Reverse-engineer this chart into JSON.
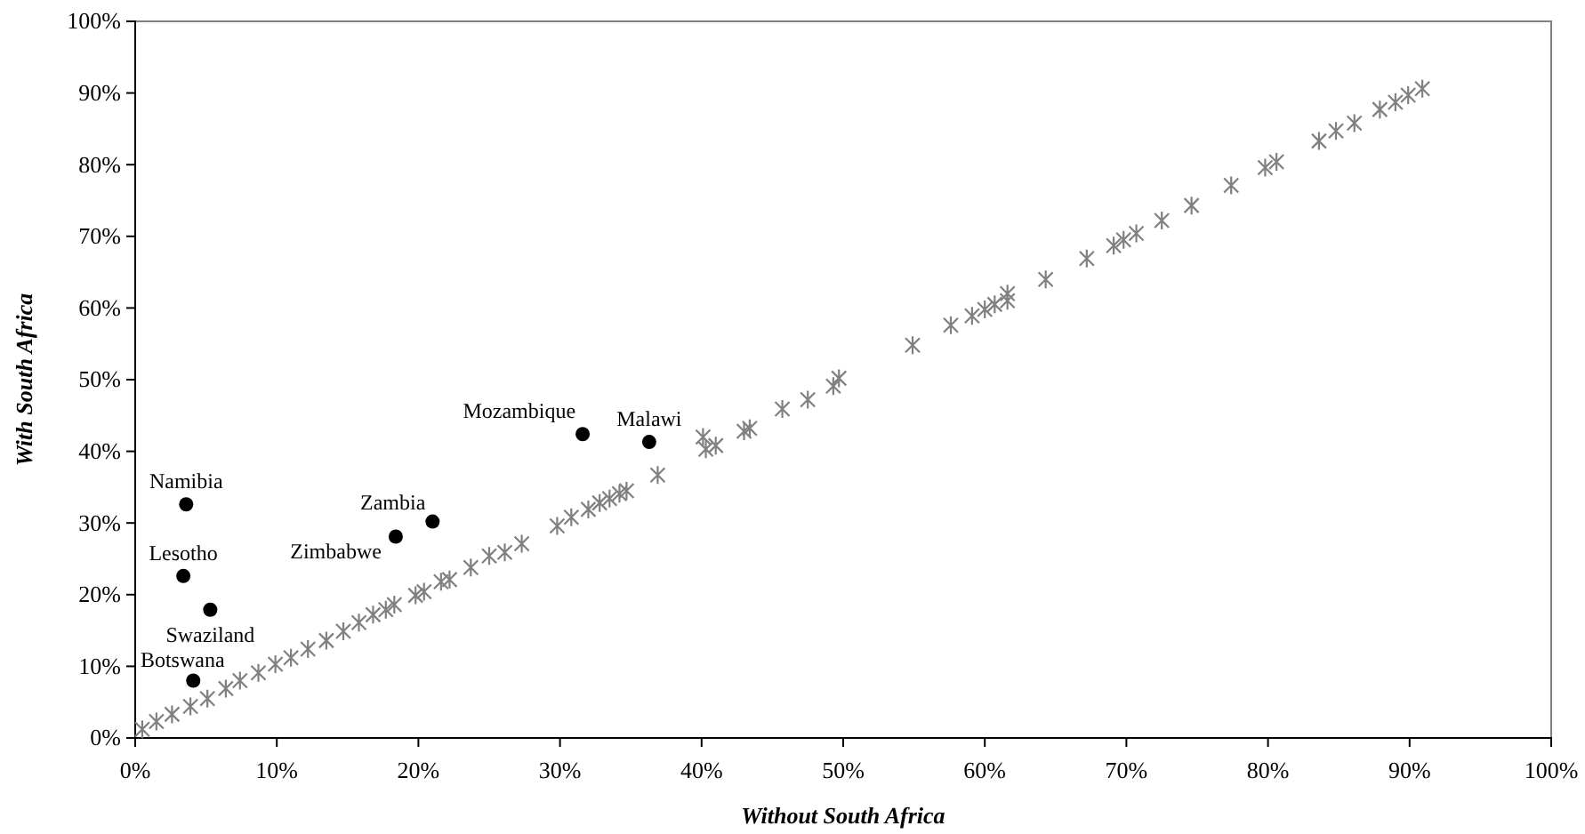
{
  "chart_data": {
    "type": "scatter",
    "xlabel": "Without South Africa",
    "ylabel": "With South Africa",
    "xlim": [
      0,
      100
    ],
    "ylim": [
      0,
      100
    ],
    "xticks": [
      {
        "value": 0,
        "label": "0%"
      },
      {
        "value": 10,
        "label": "10%"
      },
      {
        "value": 20,
        "label": "20%"
      },
      {
        "value": 30,
        "label": "30%"
      },
      {
        "value": 40,
        "label": "40%"
      },
      {
        "value": 50,
        "label": "50%"
      },
      {
        "value": 60,
        "label": "60%"
      },
      {
        "value": 70,
        "label": "70%"
      },
      {
        "value": 80,
        "label": "80%"
      },
      {
        "value": 90,
        "label": "90%"
      },
      {
        "value": 100,
        "label": "100%"
      }
    ],
    "yticks": [
      {
        "value": 0,
        "label": "0%"
      },
      {
        "value": 10,
        "label": "10%"
      },
      {
        "value": 20,
        "label": "20%"
      },
      {
        "value": 30,
        "label": "30%"
      },
      {
        "value": 40,
        "label": "40%"
      },
      {
        "value": 50,
        "label": "50%"
      },
      {
        "value": 60,
        "label": "60%"
      },
      {
        "value": 70,
        "label": "70%"
      },
      {
        "value": 80,
        "label": "80%"
      },
      {
        "value": 90,
        "label": "90%"
      },
      {
        "value": 100,
        "label": "100%"
      }
    ],
    "grid": false,
    "series": [
      {
        "color": "#808080",
        "marker": "cross",
        "x": [
          0.5,
          1.5,
          2.6,
          3.9,
          5.1,
          6.4,
          7.4,
          8.7,
          9.9,
          11.0,
          12.2,
          13.5,
          14.7,
          15.8,
          16.8,
          17.7,
          18.3,
          19.8,
          20.4,
          21.6,
          22.2,
          23.7,
          25.0,
          26.1,
          27.3,
          29.8,
          30.8,
          32.0,
          32.8,
          33.5,
          34.2,
          34.7,
          36.9,
          40.1,
          40.3,
          41.0,
          43.0,
          43.4,
          45.7,
          47.5,
          49.3,
          49.7,
          54.9,
          57.6,
          59.1,
          60.0,
          60.7,
          61.6,
          61.6,
          64.3,
          67.2,
          69.1,
          69.8,
          70.7,
          72.5,
          74.6,
          77.4,
          79.8,
          80.6,
          83.6,
          84.8,
          86.1,
          87.9,
          89.0,
          89.9,
          90.9
        ],
        "values": [
          1.2,
          2.3,
          3.3,
          4.4,
          5.5,
          6.9,
          8.0,
          9.1,
          10.3,
          11.2,
          12.4,
          13.6,
          14.9,
          16.1,
          17.2,
          17.9,
          18.6,
          19.9,
          20.4,
          21.8,
          22.1,
          23.8,
          25.4,
          25.9,
          27.1,
          29.6,
          30.8,
          31.9,
          32.8,
          33.4,
          34.1,
          34.5,
          36.7,
          42.0,
          40.3,
          40.8,
          42.8,
          43.2,
          45.9,
          47.2,
          49.1,
          50.2,
          54.8,
          57.6,
          58.9,
          59.8,
          60.5,
          61.0,
          62.0,
          64.0,
          66.9,
          68.7,
          69.5,
          70.4,
          72.2,
          74.3,
          77.1,
          79.6,
          80.4,
          83.3,
          84.7,
          85.8,
          87.7,
          88.7,
          89.7,
          90.6
        ]
      },
      {
        "color": "#000000",
        "marker": "circle",
        "x": [
          3.6,
          3.4,
          5.3,
          4.1,
          18.4,
          21.0,
          31.6,
          36.3
        ],
        "values": [
          32.6,
          22.6,
          17.9,
          8.0,
          28.1,
          30.2,
          42.4,
          41.3
        ]
      }
    ],
    "annotations": [
      {
        "text": "Namibia",
        "x": 3.6,
        "y": 32.6
      },
      {
        "text": "Lesotho",
        "x": 3.4,
        "y": 22.6
      },
      {
        "text": "Swaziland",
        "x": 5.3,
        "y": 17.9
      },
      {
        "text": "Botswana",
        "x": 4.1,
        "y": 8.0
      },
      {
        "text": "Zimbabwe",
        "x": 18.4,
        "y": 28.1
      },
      {
        "text": "Zambia",
        "x": 21.0,
        "y": 30.2
      },
      {
        "text": "Mozambique",
        "x": 31.6,
        "y": 42.4
      },
      {
        "text": "Malawi",
        "x": 36.3,
        "y": 41.3
      }
    ]
  }
}
